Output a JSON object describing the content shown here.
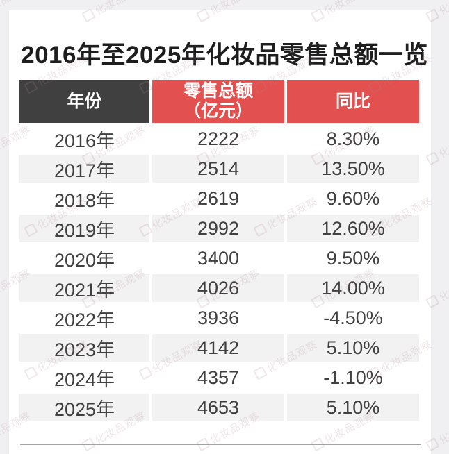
{
  "title": "2016年至2025年化妆品零售总额一览",
  "watermark": {
    "text": "化妆品观察",
    "logo": "square-outline-icon"
  },
  "colors": {
    "page_bg": "#f0f0f2",
    "header_dark": "#404040",
    "header_red": "#e25150",
    "row_alt": "#f2f2f3",
    "body_text": "#404040",
    "watermark": "rgba(175,135,140,0.20)"
  },
  "table": {
    "header": {
      "col1": "年份",
      "col2_line1": "零售总额",
      "col2_line2": "（亿元）",
      "col3": "同比"
    }
  },
  "chart_data": {
    "type": "table",
    "title": "2016年至2025年化妆品零售总额一览",
    "columns": [
      "年份",
      "零售总额（亿元）",
      "同比"
    ],
    "rows": [
      [
        "2016年",
        "2222",
        "8.30%"
      ],
      [
        "2017年",
        "2514",
        "13.50%"
      ],
      [
        "2018年",
        "2619",
        "9.60%"
      ],
      [
        "2019年",
        "2992",
        "12.60%"
      ],
      [
        "2020年",
        "3400",
        "9.50%"
      ],
      [
        "2021年",
        "4026",
        "14.00%"
      ],
      [
        "2022年",
        "3936",
        "-4.50%"
      ],
      [
        "2023年",
        "4142",
        "5.10%"
      ],
      [
        "2024年",
        "4357",
        "-1.10%"
      ],
      [
        "2025年",
        "4653",
        "5.10%"
      ]
    ],
    "years": [
      2016,
      2017,
      2018,
      2019,
      2020,
      2021,
      2022,
      2023,
      2024,
      2025
    ],
    "retail_total_billion_yuan": [
      2222,
      2514,
      2619,
      2992,
      3400,
      4026,
      3936,
      4142,
      4357,
      4653
    ],
    "yoy_percent": [
      8.3,
      13.5,
      9.6,
      12.6,
      9.5,
      14.0,
      -4.5,
      5.1,
      -1.1,
      5.1
    ]
  }
}
